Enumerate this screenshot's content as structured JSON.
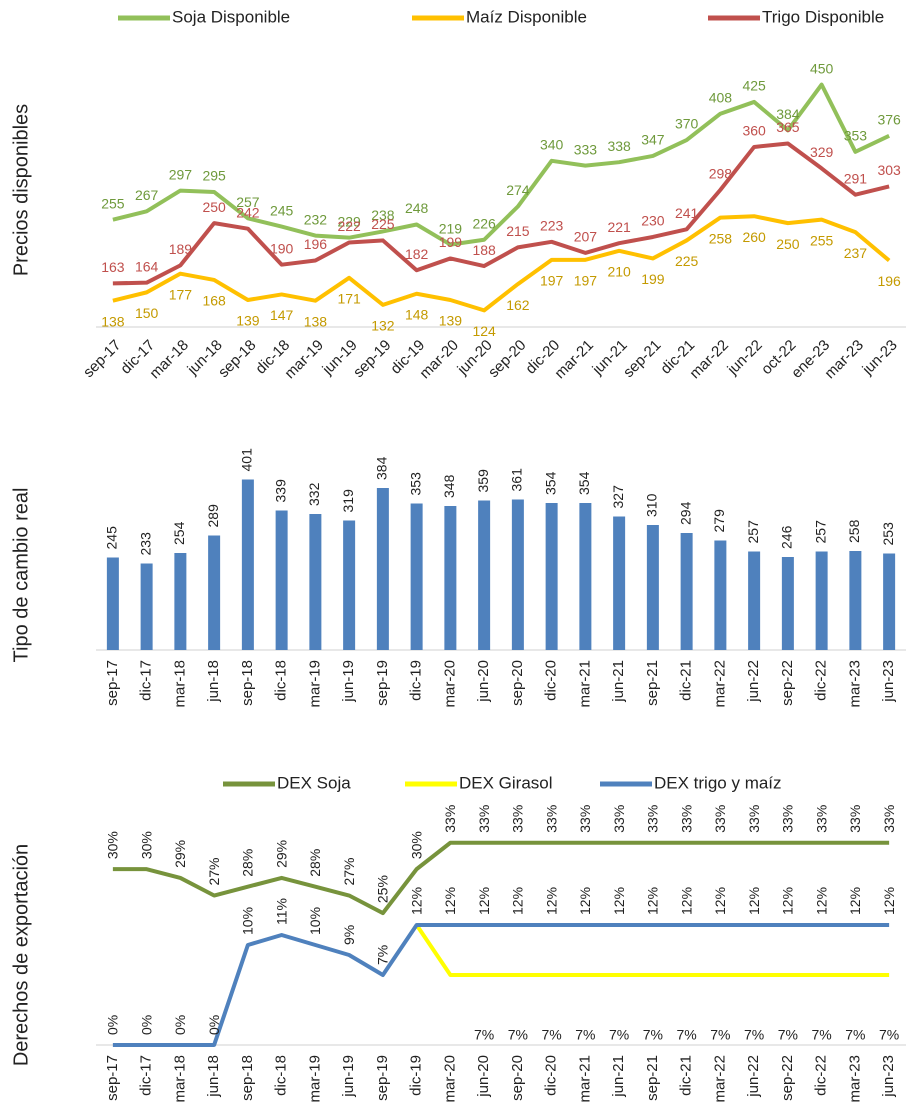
{
  "chart_data": [
    {
      "type": "line",
      "ylabel": "Precios disponibles",
      "categories": [
        "sep-17",
        "dic-17",
        "mar-18",
        "jun-18",
        "sep-18",
        "dic-18",
        "mar-19",
        "jun-19",
        "sep-19",
        "dic-19",
        "mar-20",
        "jun-20",
        "sep-20",
        "dic-20",
        "mar-21",
        "jun-21",
        "sep-21",
        "dic-21",
        "mar-22",
        "jun-22",
        "oct-22",
        "ene-23",
        "mar-23",
        "jun-23"
      ],
      "ylim": [
        100,
        500
      ],
      "legend": "top",
      "series": [
        {
          "name": "Soja Disponible",
          "color": "#92c05a",
          "label_color": "#6f9a3c",
          "values": [
            255,
            267,
            297,
            295,
            257,
            245,
            232,
            229,
            238,
            248,
            219,
            226,
            274,
            340,
            333,
            338,
            347,
            370,
            408,
            425,
            384,
            450,
            353,
            376
          ]
        },
        {
          "name": "Maíz Disponible",
          "color": "#ffc000",
          "label_color": "#c49a00",
          "values": [
            138,
            150,
            177,
            168,
            139,
            147,
            138,
            171,
            132,
            148,
            139,
            124,
            162,
            197,
            197,
            210,
            199,
            225,
            258,
            260,
            250,
            255,
            237,
            196
          ]
        },
        {
          "name": "Trigo Disponible",
          "color": "#c0504d",
          "label_color": "#c0504d",
          "values": [
            163,
            164,
            189,
            250,
            242,
            190,
            196,
            222,
            225,
            182,
            199,
            188,
            215,
            223,
            207,
            221,
            230,
            241,
            298,
            360,
            365,
            329,
            291,
            303
          ]
        }
      ]
    },
    {
      "type": "bar",
      "ylabel": "Tipo de cambio real",
      "categories": [
        "sep-17",
        "dic-17",
        "mar-18",
        "jun-18",
        "sep-18",
        "dic-18",
        "mar-19",
        "jun-19",
        "sep-19",
        "dic-19",
        "mar-20",
        "jun-20",
        "sep-20",
        "dic-20",
        "mar-21",
        "jun-21",
        "sep-21",
        "dic-21",
        "mar-22",
        "jun-22",
        "sep-22",
        "dic-22",
        "mar-23",
        "jun-23"
      ],
      "values": [
        245,
        233,
        254,
        289,
        401,
        339,
        332,
        319,
        384,
        353,
        348,
        359,
        361,
        354,
        354,
        327,
        310,
        294,
        279,
        257,
        246,
        257,
        258,
        253
      ],
      "color": "#4f81bd",
      "ylim": [
        60,
        450
      ]
    },
    {
      "type": "line",
      "ylabel": "Derechos de exportación",
      "categories": [
        "sep-17",
        "dic-17",
        "mar-18",
        "jun-18",
        "sep-18",
        "dic-18",
        "mar-19",
        "jun-19",
        "sep-19",
        "dic-19",
        "mar-20",
        "jun-20",
        "sep-20",
        "dic-20",
        "mar-21",
        "jun-21",
        "sep-21",
        "dic-21",
        "mar-22",
        "jun-22",
        "sep-22",
        "dic-22",
        "mar-23",
        "jun-23"
      ],
      "ylim": [
        0,
        25.5
      ],
      "y2lim": [
        10,
        39
      ],
      "legend": "top",
      "series": [
        {
          "name": "DEX Soja",
          "color": "#77933c",
          "axis": "y2",
          "values": [
            30,
            30,
            29,
            27,
            28,
            29,
            28,
            27,
            25,
            30,
            33,
            33,
            33,
            33,
            33,
            33,
            33,
            33,
            33,
            33,
            33,
            33,
            33,
            33
          ],
          "value_labels": [
            "30%",
            "30%",
            "29%",
            "27%",
            "28%",
            "29%",
            "28%",
            "27%",
            "25%",
            "30%",
            "33%",
            "33%",
            "33%",
            "33%",
            "33%",
            "33%",
            "33%",
            "33%",
            "33%",
            "33%",
            "33%",
            "33%",
            "33%",
            "33%"
          ]
        },
        {
          "name": "DEX Girasol",
          "color": "#ffff00",
          "values": [
            null,
            null,
            null,
            null,
            null,
            null,
            null,
            null,
            null,
            12,
            7,
            7,
            7,
            7,
            7,
            7,
            7,
            7,
            7,
            7,
            7,
            7,
            7,
            7
          ],
          "value_labels": [
            null,
            null,
            null,
            null,
            null,
            null,
            null,
            null,
            null,
            null,
            null,
            "7%",
            "7%",
            "7%",
            "7%",
            "7%",
            "7%",
            "7%",
            "7%",
            "7%",
            "7%",
            "7%",
            "7%",
            "7%"
          ]
        },
        {
          "name": "DEX trigo y maíz",
          "color": "#4f81bd",
          "values": [
            0,
            0,
            0,
            0,
            10,
            11,
            10,
            9,
            7,
            12,
            12,
            12,
            12,
            12,
            12,
            12,
            12,
            12,
            12,
            12,
            12,
            12,
            12,
            12
          ],
          "value_labels": [
            "0%",
            "0%",
            "0%",
            "0%",
            "10%",
            "11%",
            "10%",
            "9%",
            "7%",
            "12%",
            "12%",
            "12%",
            "12%",
            "12%",
            "12%",
            "12%",
            "12%",
            "12%",
            "12%",
            "12%",
            "12%",
            "12%",
            "12%",
            "12%"
          ]
        }
      ]
    }
  ]
}
